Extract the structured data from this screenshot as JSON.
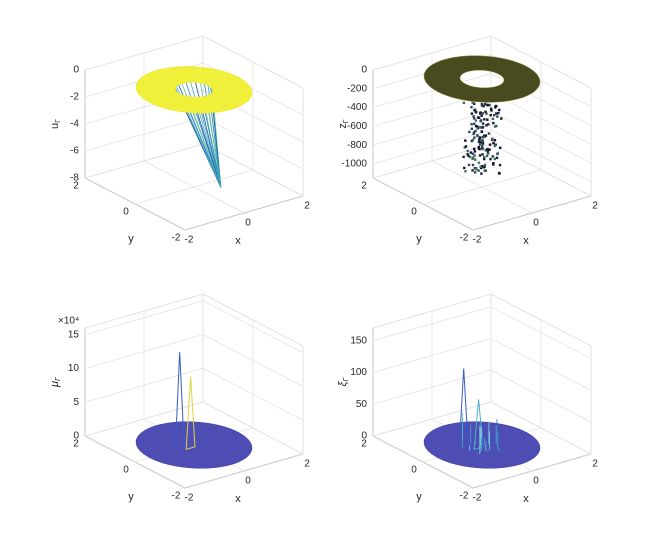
{
  "chart_data": [
    {
      "type": "surface",
      "zlabel": "u",
      "zlabel_subscript": "Γ",
      "xlabel": "x",
      "ylabel": "y",
      "xlim": [
        -2,
        2
      ],
      "ylim": [
        -2,
        2
      ],
      "zlim": [
        -8,
        0
      ],
      "xticks": [
        -2,
        0,
        2
      ],
      "yticks": [
        -2,
        0,
        2
      ],
      "zticks": [
        -8,
        -6,
        -4,
        -2,
        0
      ],
      "grid": true,
      "color": "#f0f03a"
    },
    {
      "type": "scatter3",
      "zlabel": "z",
      "zlabel_subscript": "Γ",
      "xlabel": "x",
      "ylabel": "y",
      "xlim": [
        -2,
        2
      ],
      "ylim": [
        -2,
        2
      ],
      "zlim": [
        -1150,
        0
      ],
      "xticks": [
        -2,
        0,
        2
      ],
      "yticks": [
        -2,
        0,
        2
      ],
      "zticks": [
        -1000,
        -800,
        -600,
        -400,
        -200,
        0
      ],
      "grid": true,
      "color": "#4a4a20"
    },
    {
      "type": "surface",
      "zlabel": "μ",
      "zlabel_subscript": "Γ",
      "xlabel": "x",
      "ylabel": "y",
      "z_multiplier": "×10⁴",
      "xlim": [
        -2,
        2
      ],
      "ylim": [
        -2,
        2
      ],
      "zlim": [
        0,
        16
      ],
      "xticks": [
        -2,
        0,
        2
      ],
      "yticks": [
        -2,
        0,
        2
      ],
      "zticks": [
        0,
        5,
        10,
        15
      ],
      "grid": true,
      "color": "#4d4db3"
    },
    {
      "type": "surface",
      "zlabel": "ξ",
      "zlabel_subscript": "Γ",
      "xlabel": "x",
      "ylabel": "y",
      "xlim": [
        -2,
        2
      ],
      "ylim": [
        -2,
        2
      ],
      "zlim": [
        0,
        170
      ],
      "xticks": [
        -2,
        0,
        2
      ],
      "yticks": [
        -2,
        0,
        2
      ],
      "zticks": [
        0,
        50,
        100,
        150
      ],
      "grid": true,
      "color": "#4d4db3"
    }
  ]
}
